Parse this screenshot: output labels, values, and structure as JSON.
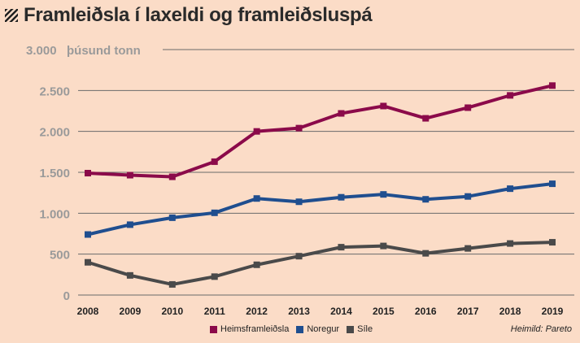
{
  "header": {
    "title": "Framleiðsla í laxeldi og framleiðsluspá",
    "icon": "hatch-icon"
  },
  "source_text": "Heimild: Pareto",
  "colors": {
    "background": "#fbdcc7",
    "grid": "#6a6a6a",
    "y_unit_label": "#9a9a9a"
  },
  "chart_data": {
    "type": "line",
    "title": "Framleiðsla í laxeldi og framleiðsluspá",
    "xlabel": "",
    "ylabel": "",
    "y_unit_label": "þúsund tonn",
    "x": [
      2008,
      2009,
      2010,
      2011,
      2012,
      2013,
      2014,
      2015,
      2016,
      2017,
      2018,
      2019
    ],
    "ylim": [
      0,
      3000
    ],
    "y_ticks": [
      {
        "value": 0,
        "label": "0"
      },
      {
        "value": 500,
        "label": "500"
      },
      {
        "value": 1000,
        "label": "1.000"
      },
      {
        "value": 1500,
        "label": "1.500"
      },
      {
        "value": 2000,
        "label": "2.000"
      },
      {
        "value": 2500,
        "label": "2.500"
      },
      {
        "value": 3000,
        "label": "3.000"
      }
    ],
    "grid": true,
    "legend_position": "bottom",
    "series": [
      {
        "name": "Heimsframleiðsla",
        "color": "#8b0a4a",
        "values": [
          1490,
          1465,
          1445,
          1630,
          2000,
          2040,
          2220,
          2310,
          2160,
          2290,
          2440,
          2560
        ]
      },
      {
        "name": "Noregur",
        "color": "#1f4e8f",
        "values": [
          740,
          860,
          945,
          1005,
          1180,
          1140,
          1195,
          1230,
          1170,
          1205,
          1300,
          1360
        ]
      },
      {
        "name": "Síle",
        "color": "#4a4a4a",
        "values": [
          400,
          240,
          130,
          225,
          370,
          475,
          585,
          600,
          510,
          570,
          630,
          645
        ]
      }
    ]
  }
}
